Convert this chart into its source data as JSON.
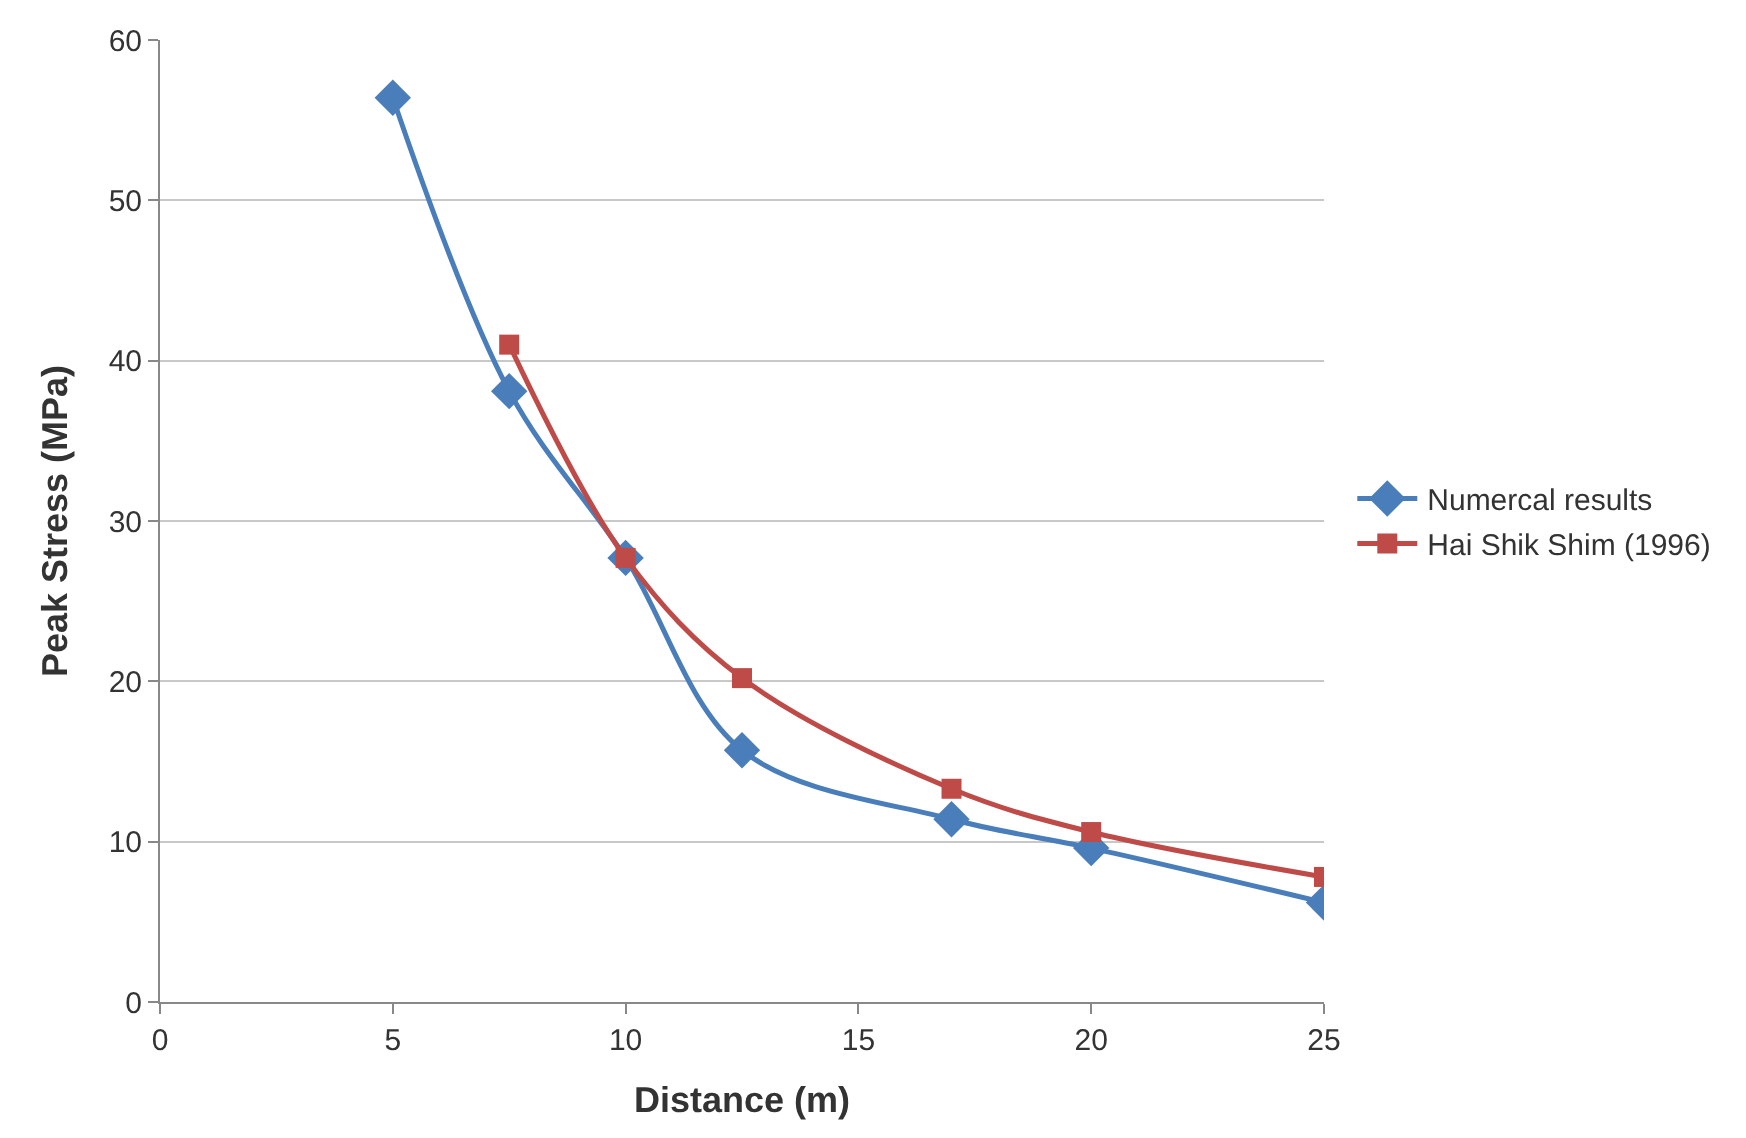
{
  "chart_data": {
    "type": "line",
    "xlabel": "Distance (m)",
    "ylabel": "Peak Stress (MPa)",
    "xlim": [
      0,
      25
    ],
    "xticks": [
      0,
      5,
      10,
      15,
      20,
      25
    ],
    "ylim": [
      0,
      60
    ],
    "yticks": [
      0,
      10,
      20,
      30,
      40,
      50,
      60
    ],
    "grid": "y",
    "legend": "right",
    "line_style": "solid",
    "series": [
      {
        "name": "Numercal results",
        "color": "#4a7ebb",
        "marker": "diamond",
        "x": [
          5,
          7.5,
          10,
          12.5,
          17,
          20,
          25
        ],
        "values": [
          56.4,
          38.1,
          27.7,
          15.7,
          11.4,
          9.6,
          6.2
        ]
      },
      {
        "name": "Hai Shik Shim (1996)",
        "color": "#be4b48",
        "marker": "square",
        "x": [
          7.5,
          10,
          12.5,
          17,
          20,
          25
        ],
        "values": [
          41.0,
          27.7,
          20.2,
          13.3,
          10.6,
          7.8
        ]
      }
    ]
  }
}
